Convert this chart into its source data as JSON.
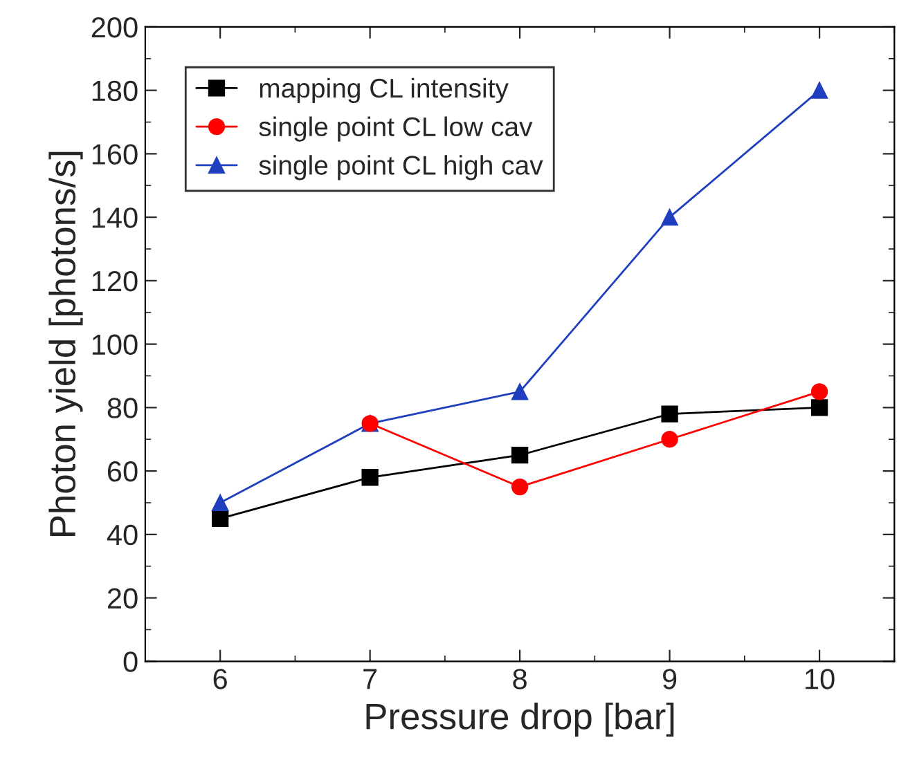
{
  "chart_data": {
    "type": "line",
    "xlabel": "Pressure drop [bar]",
    "ylabel": "Photon yield [photons/s]",
    "x": [
      6,
      7,
      8,
      9,
      10
    ],
    "series": [
      {
        "name": "mapping CL intensity",
        "color": "#000000",
        "marker": "square",
        "values": [
          45,
          58,
          65,
          78,
          80
        ]
      },
      {
        "name": "single point CL low cav",
        "color": "#ff0000",
        "marker": "circle",
        "values": [
          null,
          75,
          55,
          70,
          85
        ]
      },
      {
        "name": "single point CL high cav",
        "color": "#1f3fbf",
        "marker": "triangle",
        "values": [
          50,
          75,
          85,
          140,
          180
        ]
      }
    ],
    "xlim": [
      5.5,
      10.5
    ],
    "xticks": [
      6,
      7,
      8,
      9,
      10
    ],
    "ylim": [
      0,
      200
    ],
    "yticks": [
      0,
      20,
      40,
      60,
      80,
      100,
      120,
      140,
      160,
      180,
      200
    ],
    "grid": false,
    "legend": "top left",
    "line_style": "solid"
  }
}
